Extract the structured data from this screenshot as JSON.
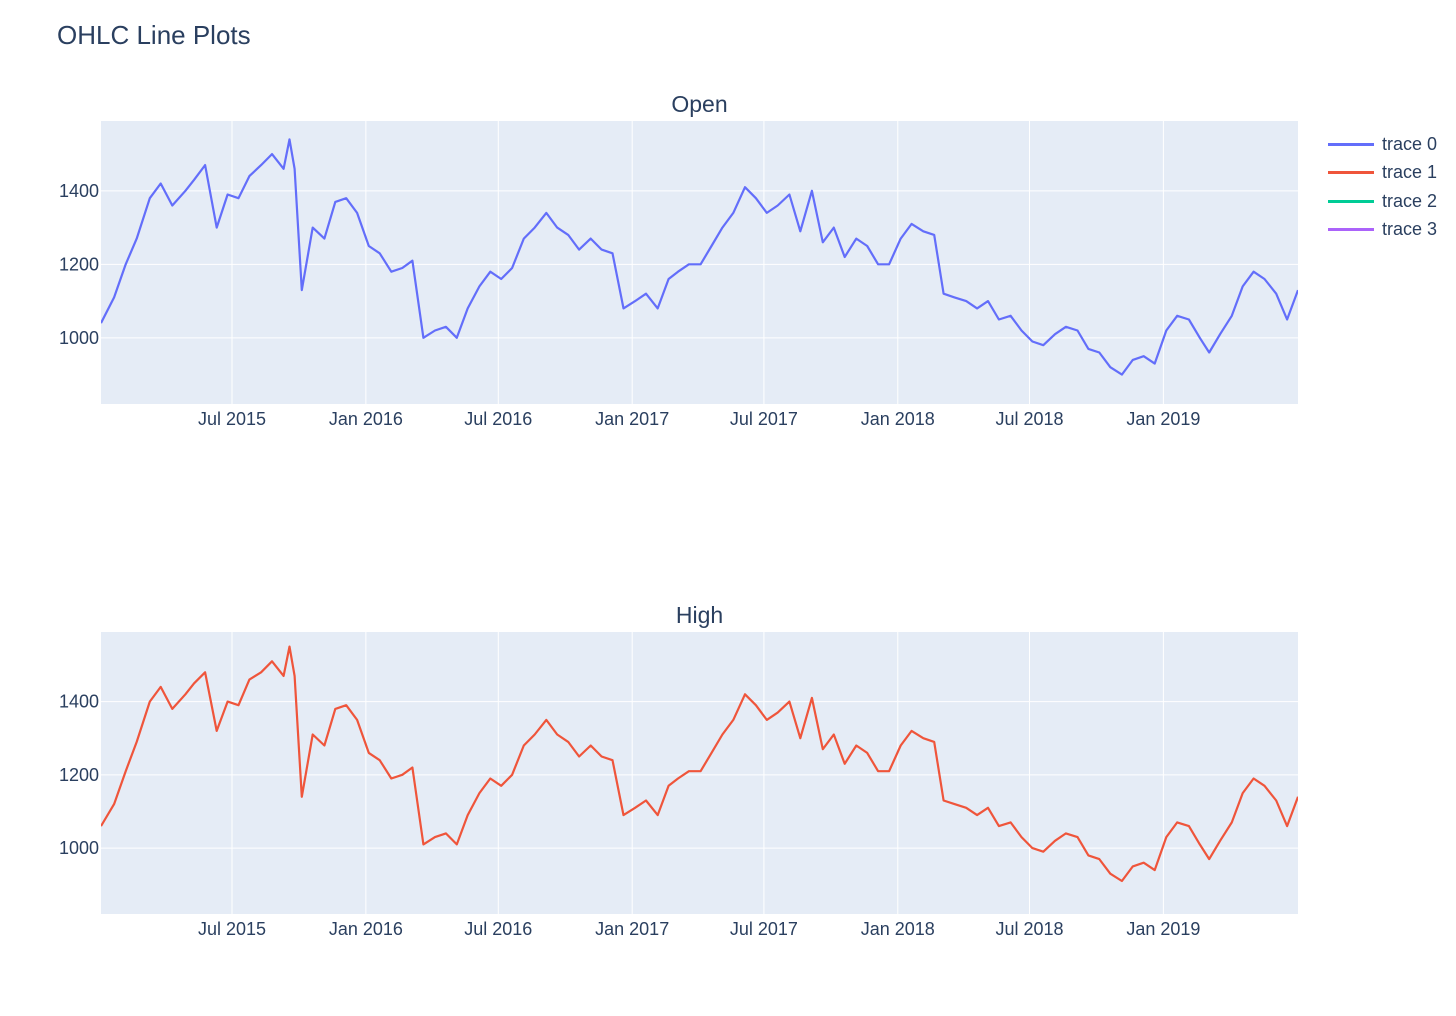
{
  "title": "OHLC Line Plots",
  "legend": [
    {
      "name": "trace 0",
      "color": "#636efa"
    },
    {
      "name": "trace 1",
      "color": "#ef553b"
    },
    {
      "name": "trace 2",
      "color": "#00cc96"
    },
    {
      "name": "trace 3",
      "color": "#ab63fa"
    }
  ],
  "chart_data": [
    {
      "type": "line",
      "title": "Open",
      "series": [
        {
          "name": "trace 0",
          "color": "#636efa",
          "x": [
            "2015-01-02",
            "2015-01-20",
            "2015-02-05",
            "2015-02-20",
            "2015-03-10",
            "2015-03-25",
            "2015-04-10",
            "2015-04-28",
            "2015-05-10",
            "2015-05-25",
            "2015-06-10",
            "2015-06-25",
            "2015-07-10",
            "2015-07-25",
            "2015-08-10",
            "2015-08-25",
            "2015-09-10",
            "2015-09-18",
            "2015-09-25",
            "2015-10-05",
            "2015-10-20",
            "2015-11-05",
            "2015-11-20",
            "2015-12-05",
            "2015-12-20",
            "2016-01-05",
            "2016-01-20",
            "2016-02-05",
            "2016-02-20",
            "2016-03-05",
            "2016-03-20",
            "2016-04-05",
            "2016-04-20",
            "2016-05-05",
            "2016-05-20",
            "2016-06-05",
            "2016-06-20",
            "2016-07-05",
            "2016-07-20",
            "2016-08-05",
            "2016-08-20",
            "2016-09-05",
            "2016-09-20",
            "2016-10-05",
            "2016-10-20",
            "2016-11-05",
            "2016-11-20",
            "2016-12-05",
            "2016-12-20",
            "2017-01-05",
            "2017-01-20",
            "2017-02-05",
            "2017-02-20",
            "2017-03-05",
            "2017-03-20",
            "2017-04-05",
            "2017-04-20",
            "2017-05-05",
            "2017-05-20",
            "2017-06-05",
            "2017-06-20",
            "2017-07-05",
            "2017-07-20",
            "2017-08-05",
            "2017-08-20",
            "2017-09-05",
            "2017-09-20",
            "2017-10-05",
            "2017-10-20",
            "2017-11-05",
            "2017-11-20",
            "2017-12-05",
            "2017-12-20",
            "2018-01-05",
            "2018-01-20",
            "2018-02-05",
            "2018-02-20",
            "2018-03-05",
            "2018-03-20",
            "2018-04-05",
            "2018-04-20",
            "2018-05-05",
            "2018-05-20",
            "2018-06-05",
            "2018-06-20",
            "2018-07-05",
            "2018-07-20",
            "2018-08-05",
            "2018-08-20",
            "2018-09-05",
            "2018-09-20",
            "2018-10-05",
            "2018-10-20",
            "2018-11-05",
            "2018-11-20",
            "2018-12-05",
            "2018-12-20",
            "2019-01-05",
            "2019-01-20",
            "2019-02-05",
            "2019-02-20",
            "2019-03-05",
            "2019-03-20",
            "2019-04-05",
            "2019-04-20",
            "2019-05-05",
            "2019-05-20",
            "2019-06-05",
            "2019-06-20",
            "2019-07-05"
          ],
          "y": [
            1040,
            1110,
            1200,
            1270,
            1380,
            1420,
            1360,
            1400,
            1430,
            1470,
            1300,
            1390,
            1380,
            1440,
            1470,
            1500,
            1460,
            1540,
            1460,
            1130,
            1300,
            1270,
            1370,
            1380,
            1340,
            1250,
            1230,
            1180,
            1190,
            1210,
            1000,
            1020,
            1030,
            1000,
            1080,
            1140,
            1180,
            1160,
            1190,
            1270,
            1300,
            1340,
            1300,
            1280,
            1240,
            1270,
            1240,
            1230,
            1080,
            1100,
            1120,
            1080,
            1160,
            1180,
            1200,
            1200,
            1250,
            1300,
            1340,
            1410,
            1380,
            1340,
            1360,
            1390,
            1290,
            1400,
            1260,
            1300,
            1220,
            1270,
            1250,
            1200,
            1200,
            1270,
            1310,
            1290,
            1280,
            1120,
            1110,
            1100,
            1080,
            1100,
            1050,
            1060,
            1020,
            990,
            980,
            1010,
            1030,
            1020,
            970,
            960,
            920,
            900,
            940,
            950,
            930,
            1020,
            1060,
            1050,
            1000,
            960,
            1010,
            1060,
            1140,
            1180,
            1160,
            1120,
            1050,
            1130
          ]
        }
      ],
      "xlabel": "",
      "ylabel": "",
      "xlim": [
        "2015-01-02",
        "2019-07-05"
      ],
      "ylim": [
        820,
        1590
      ],
      "yticks": [
        1000,
        1200,
        1400
      ],
      "xticks": [
        "Jul 2015",
        "Jan 2016",
        "Jul 2016",
        "Jan 2017",
        "Jul 2017",
        "Jan 2018",
        "Jul 2018",
        "Jan 2019"
      ],
      "xtick_dates": [
        "2015-07-01",
        "2016-01-01",
        "2016-07-01",
        "2017-01-01",
        "2017-07-01",
        "2018-01-01",
        "2018-07-01",
        "2019-01-01"
      ],
      "grid": true
    },
    {
      "type": "line",
      "title": "High",
      "series": [
        {
          "name": "trace 1",
          "color": "#ef553b",
          "x": [
            "2015-01-02",
            "2015-01-20",
            "2015-02-05",
            "2015-02-20",
            "2015-03-10",
            "2015-03-25",
            "2015-04-10",
            "2015-04-28",
            "2015-05-10",
            "2015-05-25",
            "2015-06-10",
            "2015-06-25",
            "2015-07-10",
            "2015-07-25",
            "2015-08-10",
            "2015-08-25",
            "2015-09-10",
            "2015-09-18",
            "2015-09-25",
            "2015-10-05",
            "2015-10-20",
            "2015-11-05",
            "2015-11-20",
            "2015-12-05",
            "2015-12-20",
            "2016-01-05",
            "2016-01-20",
            "2016-02-05",
            "2016-02-20",
            "2016-03-05",
            "2016-03-20",
            "2016-04-05",
            "2016-04-20",
            "2016-05-05",
            "2016-05-20",
            "2016-06-05",
            "2016-06-20",
            "2016-07-05",
            "2016-07-20",
            "2016-08-05",
            "2016-08-20",
            "2016-09-05",
            "2016-09-20",
            "2016-10-05",
            "2016-10-20",
            "2016-11-05",
            "2016-11-20",
            "2016-12-05",
            "2016-12-20",
            "2017-01-05",
            "2017-01-20",
            "2017-02-05",
            "2017-02-20",
            "2017-03-05",
            "2017-03-20",
            "2017-04-05",
            "2017-04-20",
            "2017-05-05",
            "2017-05-20",
            "2017-06-05",
            "2017-06-20",
            "2017-07-05",
            "2017-07-20",
            "2017-08-05",
            "2017-08-20",
            "2017-09-05",
            "2017-09-20",
            "2017-10-05",
            "2017-10-20",
            "2017-11-05",
            "2017-11-20",
            "2017-12-05",
            "2017-12-20",
            "2018-01-05",
            "2018-01-20",
            "2018-02-05",
            "2018-02-20",
            "2018-03-05",
            "2018-03-20",
            "2018-04-05",
            "2018-04-20",
            "2018-05-05",
            "2018-05-20",
            "2018-06-05",
            "2018-06-20",
            "2018-07-05",
            "2018-07-20",
            "2018-08-05",
            "2018-08-20",
            "2018-09-05",
            "2018-09-20",
            "2018-10-05",
            "2018-10-20",
            "2018-11-05",
            "2018-11-20",
            "2018-12-05",
            "2018-12-20",
            "2019-01-05",
            "2019-01-20",
            "2019-02-05",
            "2019-02-20",
            "2019-03-05",
            "2019-03-20",
            "2019-04-05",
            "2019-04-20",
            "2019-05-05",
            "2019-05-20",
            "2019-06-05",
            "2019-06-20",
            "2019-07-05"
          ],
          "y": [
            1060,
            1120,
            1210,
            1290,
            1400,
            1440,
            1380,
            1420,
            1450,
            1480,
            1320,
            1400,
            1390,
            1460,
            1480,
            1510,
            1470,
            1550,
            1470,
            1140,
            1310,
            1280,
            1380,
            1390,
            1350,
            1260,
            1240,
            1190,
            1200,
            1220,
            1010,
            1030,
            1040,
            1010,
            1090,
            1150,
            1190,
            1170,
            1200,
            1280,
            1310,
            1350,
            1310,
            1290,
            1250,
            1280,
            1250,
            1240,
            1090,
            1110,
            1130,
            1090,
            1170,
            1190,
            1210,
            1210,
            1260,
            1310,
            1350,
            1420,
            1390,
            1350,
            1370,
            1400,
            1300,
            1410,
            1270,
            1310,
            1230,
            1280,
            1260,
            1210,
            1210,
            1280,
            1320,
            1300,
            1290,
            1130,
            1120,
            1110,
            1090,
            1110,
            1060,
            1070,
            1030,
            1000,
            990,
            1020,
            1040,
            1030,
            980,
            970,
            930,
            910,
            950,
            960,
            940,
            1030,
            1070,
            1060,
            1010,
            970,
            1020,
            1070,
            1150,
            1190,
            1170,
            1130,
            1060,
            1140
          ]
        }
      ],
      "xlabel": "",
      "ylabel": "",
      "xlim": [
        "2015-01-02",
        "2019-07-05"
      ],
      "ylim": [
        820,
        1590
      ],
      "yticks": [
        1000,
        1200,
        1400
      ],
      "xticks": [
        "Jul 2015",
        "Jan 2016",
        "Jul 2016",
        "Jan 2017",
        "Jul 2017",
        "Jan 2018",
        "Jul 2018",
        "Jan 2019"
      ],
      "xtick_dates": [
        "2015-07-01",
        "2016-01-01",
        "2016-07-01",
        "2017-01-01",
        "2017-07-01",
        "2018-01-01",
        "2018-07-01",
        "2019-01-01"
      ],
      "grid": true
    }
  ]
}
